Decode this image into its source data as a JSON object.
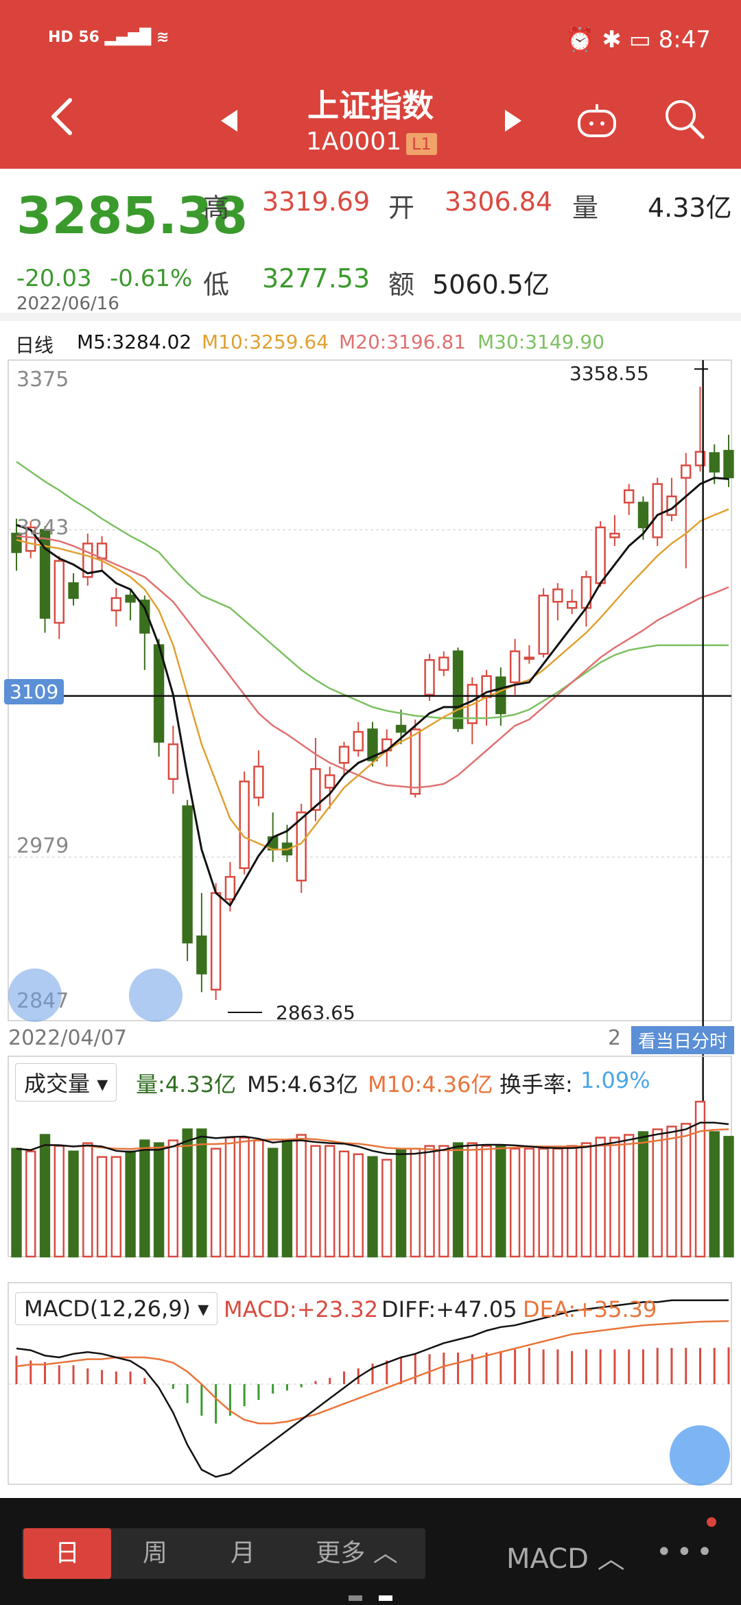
{
  "status_bar": {
    "left": "HD 56 ▂▄▆█ ≋",
    "right": "⏰ ✱ ▭ 8:47"
  },
  "header": {
    "title": "上证指数",
    "code": "1A0001",
    "level": "L1",
    "back_icon": "back-arrow-icon",
    "robot_icon": "robot-icon",
    "search_icon": "search-icon"
  },
  "quote": {
    "last": "3285.38",
    "change": "-20.03",
    "change_pct": "-0.61%",
    "date": "2022/06/16",
    "high_label": "高",
    "high": "3319.69",
    "open_label": "开",
    "open": "3306.84",
    "volume_label": "量",
    "volume": "4.33亿",
    "low_label": "低",
    "low": "3277.53",
    "amount_label": "额",
    "amount": "5060.5亿"
  },
  "ma_legend": {
    "period": "日线",
    "m5": "M5:3284.02",
    "m10": "M10:3259.64",
    "m20": "M20:3196.81",
    "m30": "M30:3149.90"
  },
  "kline": {
    "y_ticks": [
      "3375",
      "3243",
      "2979",
      "2847"
    ],
    "crosshair_price": "3109",
    "max_label": "3358.55",
    "min_label": "2863.65",
    "start_date": "2022/04/07",
    "end_date_partial": "2",
    "view_intraday": "看当日分时"
  },
  "volume_panel": {
    "selector": "成交量",
    "vol": "量:4.33亿",
    "m5": "M5:4.63亿",
    "m10": "M10:4.36亿",
    "turnover_label": "换手率:",
    "turnover": "1.09%"
  },
  "macd_panel": {
    "selector": "MACD(12,26,9)",
    "macd": "MACD:+23.32",
    "diff": "DIFF:+47.05",
    "dea": "DEA:+35.39"
  },
  "bottom_bar": {
    "tabs": [
      "日",
      "周",
      "月",
      "更多 ︿"
    ],
    "indicator": "MACD ︿",
    "more": "•••"
  },
  "colors": {
    "header": "#d9433b",
    "up": "#d94a40",
    "down": "#3a6f1e",
    "ma5": "#111111",
    "ma10": "#e0a030",
    "ma20": "#e07070",
    "ma30": "#7cc060",
    "dea": "#e8743a"
  },
  "chart_data": {
    "type": "candlestick",
    "dates_range": [
      "2022/04/07",
      "2022/06/16"
    ],
    "candles": [
      {
        "o": 3240,
        "c": 3225,
        "h": 3252,
        "l": 3210
      },
      {
        "o": 3226,
        "c": 3245,
        "h": 3250,
        "l": 3220
      },
      {
        "o": 3243,
        "c": 3172,
        "h": 3246,
        "l": 3160
      },
      {
        "o": 3168,
        "c": 3218,
        "h": 3222,
        "l": 3155
      },
      {
        "o": 3200,
        "c": 3188,
        "h": 3208,
        "l": 3182
      },
      {
        "o": 3205,
        "c": 3232,
        "h": 3240,
        "l": 3198
      },
      {
        "o": 3220,
        "c": 3232,
        "h": 3238,
        "l": 3210
      },
      {
        "o": 3178,
        "c": 3188,
        "h": 3196,
        "l": 3165
      },
      {
        "o": 3190,
        "c": 3185,
        "h": 3195,
        "l": 3170
      },
      {
        "o": 3186,
        "c": 3160,
        "h": 3190,
        "l": 3130
      },
      {
        "o": 3150,
        "c": 3072,
        "h": 3155,
        "l": 3060
      },
      {
        "o": 3042,
        "c": 3070,
        "h": 3085,
        "l": 3030
      },
      {
        "o": 3020,
        "c": 2910,
        "h": 3025,
        "l": 2895
      },
      {
        "o": 2915,
        "c": 2885,
        "h": 2950,
        "l": 2870
      },
      {
        "o": 2872,
        "c": 2950,
        "h": 2958,
        "l": 2863.65
      },
      {
        "o": 2945,
        "c": 2963,
        "h": 2975,
        "l": 2935
      },
      {
        "o": 2970,
        "c": 3040,
        "h": 3048,
        "l": 2965
      },
      {
        "o": 3027,
        "c": 3052,
        "h": 3065,
        "l": 3020
      },
      {
        "o": 2995,
        "c": 2985,
        "h": 3015,
        "l": 2975
      },
      {
        "o": 2990,
        "c": 2981,
        "h": 3005,
        "l": 2975
      },
      {
        "o": 2960,
        "c": 3015,
        "h": 3022,
        "l": 2950
      },
      {
        "o": 3017,
        "c": 3050,
        "h": 3075,
        "l": 3008
      },
      {
        "o": 3035,
        "c": 3045,
        "h": 3052,
        "l": 3018
      },
      {
        "o": 3055,
        "c": 3068,
        "h": 3072,
        "l": 3045
      },
      {
        "o": 3065,
        "c": 3080,
        "h": 3088,
        "l": 3060
      },
      {
        "o": 3082,
        "c": 3057,
        "h": 3088,
        "l": 3052
      },
      {
        "o": 3065,
        "c": 3074,
        "h": 3082,
        "l": 3052
      },
      {
        "o": 3085,
        "c": 3080,
        "h": 3098,
        "l": 3070
      },
      {
        "o": 3030,
        "c": 3082,
        "h": 3090,
        "l": 3027
      },
      {
        "o": 3110,
        "c": 3138,
        "h": 3143,
        "l": 3105
      },
      {
        "o": 3130,
        "c": 3140,
        "h": 3145,
        "l": 3125
      },
      {
        "o": 3145,
        "c": 3083,
        "h": 3148,
        "l": 3080
      },
      {
        "o": 3087,
        "c": 3118,
        "h": 3124,
        "l": 3070
      },
      {
        "o": 3108,
        "c": 3125,
        "h": 3130,
        "l": 3085
      },
      {
        "o": 3124,
        "c": 3095,
        "h": 3132,
        "l": 3085
      },
      {
        "o": 3120,
        "c": 3145,
        "h": 3155,
        "l": 3110
      },
      {
        "o": 3140,
        "c": 3140,
        "h": 3150,
        "l": 3135
      },
      {
        "o": 3143,
        "c": 3190,
        "h": 3196,
        "l": 3140
      },
      {
        "o": 3185,
        "c": 3195,
        "h": 3200,
        "l": 3170
      },
      {
        "o": 3180,
        "c": 3185,
        "h": 3195,
        "l": 3175
      },
      {
        "o": 3180,
        "c": 3205,
        "h": 3210,
        "l": 3165
      },
      {
        "o": 3200,
        "c": 3245,
        "h": 3250,
        "l": 3197
      },
      {
        "o": 3237,
        "c": 3240,
        "h": 3255,
        "l": 3230
      },
      {
        "o": 3265,
        "c": 3275,
        "h": 3280,
        "l": 3255
      },
      {
        "o": 3265,
        "c": 3245,
        "h": 3270,
        "l": 3235
      },
      {
        "o": 3237,
        "c": 3280,
        "h": 3285,
        "l": 3230
      },
      {
        "o": 3255,
        "c": 3270,
        "h": 3285,
        "l": 3250
      },
      {
        "o": 3285,
        "c": 3295,
        "h": 3305,
        "l": 3212
      },
      {
        "o": 3295,
        "c": 3306,
        "h": 3358.55,
        "l": 3290
      },
      {
        "o": 3305,
        "c": 3290,
        "h": 3312,
        "l": 3280
      },
      {
        "o": 3306.84,
        "c": 3285.38,
        "h": 3319.69,
        "l": 3277.53
      }
    ],
    "ma5": [
      3247,
      3243,
      3228,
      3220,
      3215,
      3208,
      3210,
      3200,
      3195,
      3180,
      3150,
      3110,
      3045,
      2985,
      2950,
      2940,
      2960,
      2980,
      2995,
      3000,
      3010,
      3020,
      3030,
      3045,
      3055,
      3060,
      3065,
      3075,
      3085,
      3095,
      3100,
      3100,
      3105,
      3112,
      3115,
      3118,
      3120,
      3135,
      3150,
      3165,
      3180,
      3200,
      3215,
      3230,
      3240,
      3255,
      3260,
      3270,
      3280,
      3285,
      3284.02
    ],
    "ma10": [
      3235,
      3232,
      3230,
      3228,
      3225,
      3222,
      3218,
      3212,
      3205,
      3195,
      3178,
      3150,
      3110,
      3070,
      3040,
      3010,
      2995,
      2990,
      2985,
      2985,
      2990,
      3005,
      3020,
      3035,
      3045,
      3055,
      3065,
      3072,
      3078,
      3085,
      3092,
      3098,
      3102,
      3108,
      3113,
      3118,
      3122,
      3130,
      3140,
      3150,
      3160,
      3172,
      3185,
      3198,
      3210,
      3222,
      3232,
      3240,
      3250,
      3255,
      3259.64
    ],
    "ma20": [
      3238,
      3237,
      3236,
      3234,
      3230,
      3225,
      3220,
      3215,
      3210,
      3205,
      3195,
      3185,
      3170,
      3155,
      3140,
      3125,
      3110,
      3095,
      3085,
      3078,
      3070,
      3062,
      3055,
      3050,
      3045,
      3040,
      3037,
      3036,
      3035,
      3036,
      3038,
      3045,
      3055,
      3065,
      3075,
      3085,
      3090,
      3100,
      3110,
      3120,
      3130,
      3140,
      3148,
      3155,
      3162,
      3170,
      3176,
      3182,
      3188,
      3192,
      3196.81
    ],
    "ma30": [
      3298,
      3290,
      3282,
      3275,
      3267,
      3260,
      3252,
      3245,
      3238,
      3232,
      3225,
      3212,
      3200,
      3190,
      3185,
      3180,
      3170,
      3160,
      3150,
      3140,
      3130,
      3122,
      3115,
      3110,
      3105,
      3100,
      3097,
      3095,
      3093,
      3092,
      3091,
      3091,
      3091,
      3091,
      3092,
      3094,
      3098,
      3105,
      3112,
      3120,
      3128,
      3136,
      3142,
      3146,
      3148,
      3149.9,
      3149.9,
      3149.9,
      3149.9,
      3149.9,
      3149.9
    ],
    "volume": [
      3.9,
      3.8,
      4.4,
      4.0,
      3.8,
      4.1,
      3.6,
      3.6,
      3.8,
      4.2,
      4.1,
      4.2,
      4.6,
      4.6,
      3.9,
      4.3,
      4.3,
      4.2,
      3.9,
      4.2,
      4.4,
      4.0,
      4.0,
      3.8,
      3.7,
      3.6,
      3.5,
      3.9,
      3.9,
      4.0,
      4.0,
      4.1,
      4.1,
      4.0,
      4.0,
      3.9,
      3.9,
      3.9,
      3.9,
      4.0,
      4.1,
      4.3,
      4.3,
      4.4,
      4.5,
      4.6,
      4.7,
      4.8,
      5.6,
      4.5,
      4.33
    ],
    "macd_hist": [
      18,
      15,
      14,
      12,
      12,
      10,
      9,
      8,
      8,
      4,
      0,
      -3,
      -12,
      -20,
      -25,
      -20,
      -14,
      -10,
      -6,
      -4,
      -2,
      2,
      4,
      8,
      10,
      13,
      15,
      17,
      19,
      19,
      20,
      20,
      19,
      20,
      21,
      22,
      23,
      22,
      22,
      21,
      22,
      22,
      22,
      22,
      22,
      23,
      23,
      23,
      23,
      23,
      23.32
    ],
    "diff": [
      20,
      19,
      16,
      15,
      17,
      18,
      17,
      15,
      13,
      8,
      -2,
      -16,
      -34,
      -48,
      -52,
      -50,
      -44,
      -38,
      -32,
      -26,
      -20,
      -14,
      -8,
      -2,
      4,
      9,
      12,
      15,
      17,
      20,
      23,
      25,
      27,
      30,
      32,
      33,
      35,
      37,
      39,
      41,
      42,
      43,
      44,
      45,
      46,
      46,
      47,
      47,
      47,
      47,
      47.05
    ],
    "dea": [
      10,
      11,
      11,
      12,
      13,
      14,
      14,
      15,
      15,
      15,
      14,
      12,
      7,
      0,
      -8,
      -15,
      -20,
      -22,
      -22,
      -21,
      -19,
      -17,
      -14,
      -11,
      -8,
      -5,
      -2,
      1,
      4,
      7,
      10,
      12,
      14,
      16,
      18,
      20,
      22,
      24,
      26,
      28,
      29,
      30,
      31,
      32,
      33,
      33.5,
      34,
      34.5,
      35,
      35.2,
      35.39
    ]
  }
}
